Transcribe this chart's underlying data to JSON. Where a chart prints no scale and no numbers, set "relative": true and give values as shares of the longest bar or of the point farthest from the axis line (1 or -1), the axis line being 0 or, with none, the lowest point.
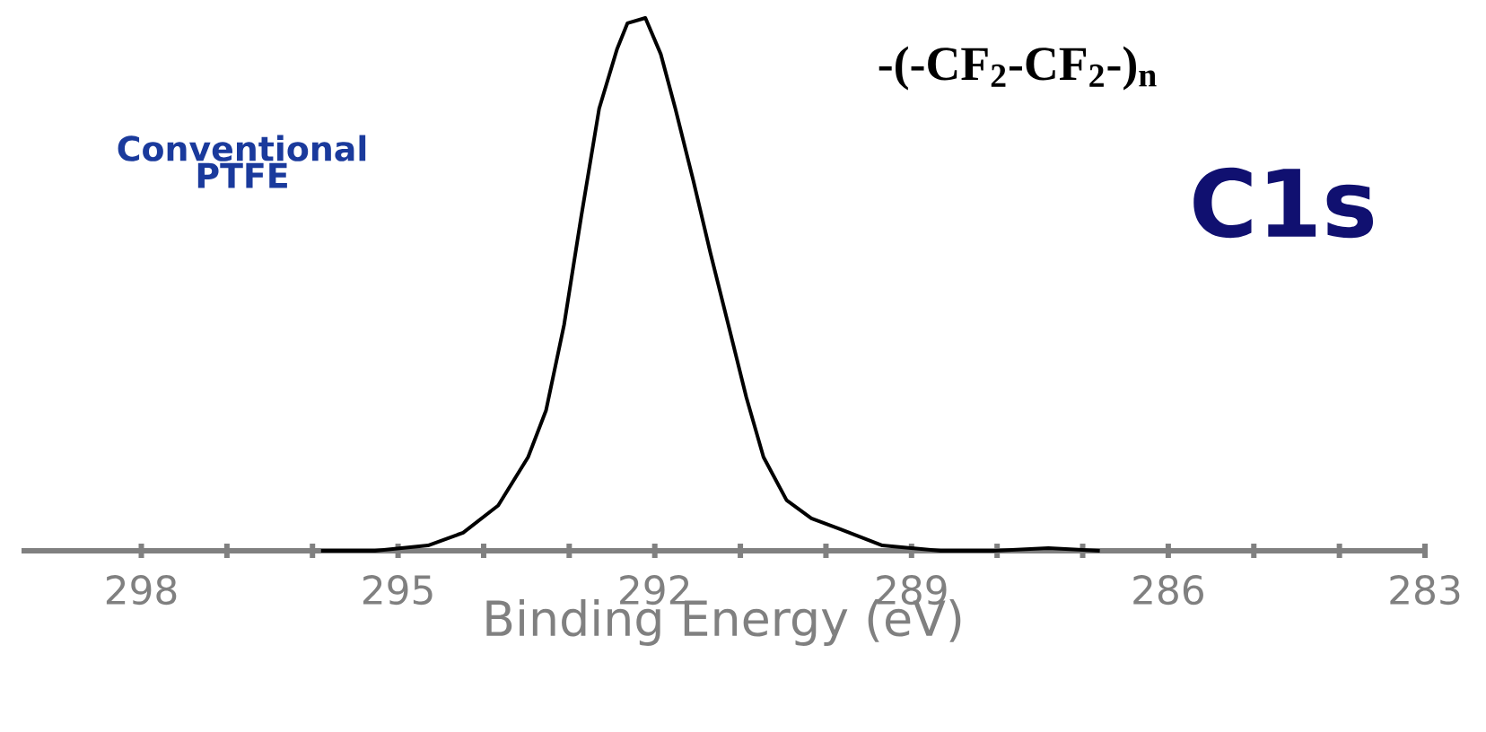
{
  "chart_data": {
    "type": "line",
    "relative": true,
    "xlabel": "Binding Energy (eV)",
    "xlim": [
      299.4,
      283
    ],
    "xticks": [
      298,
      295,
      292,
      289,
      286,
      283
    ],
    "annotations": [
      "Conventional PTFE",
      "-(-CF$_{2}$-CF$_{2}$-)$_{n}$",
      "C1s"
    ],
    "series": [
      {
        "color": "#000000",
        "x": [
          295.9,
          295.27,
          294.65,
          294.24,
          293.83,
          293.48,
          293.27,
          293.06,
          292.86,
          292.65,
          292.44,
          292.32,
          292.11,
          291.93,
          291.76,
          291.55,
          291.35,
          291.14,
          290.93,
          290.73,
          290.46,
          290.17,
          289.84,
          289.34,
          288.66,
          288.04,
          287.4,
          286.8
        ],
        "values": [
          0,
          0.0,
          0.01,
          0.034,
          0.085,
          0.176,
          0.264,
          0.424,
          0.627,
          0.83,
          0.942,
          0.99,
          1,
          0.932,
          0.83,
          0.695,
          0.559,
          0.424,
          0.288,
          0.176,
          0.095,
          0.061,
          0.041,
          0.01,
          0.0,
          0.0,
          0.005,
          0
        ]
      }
    ]
  }
}
